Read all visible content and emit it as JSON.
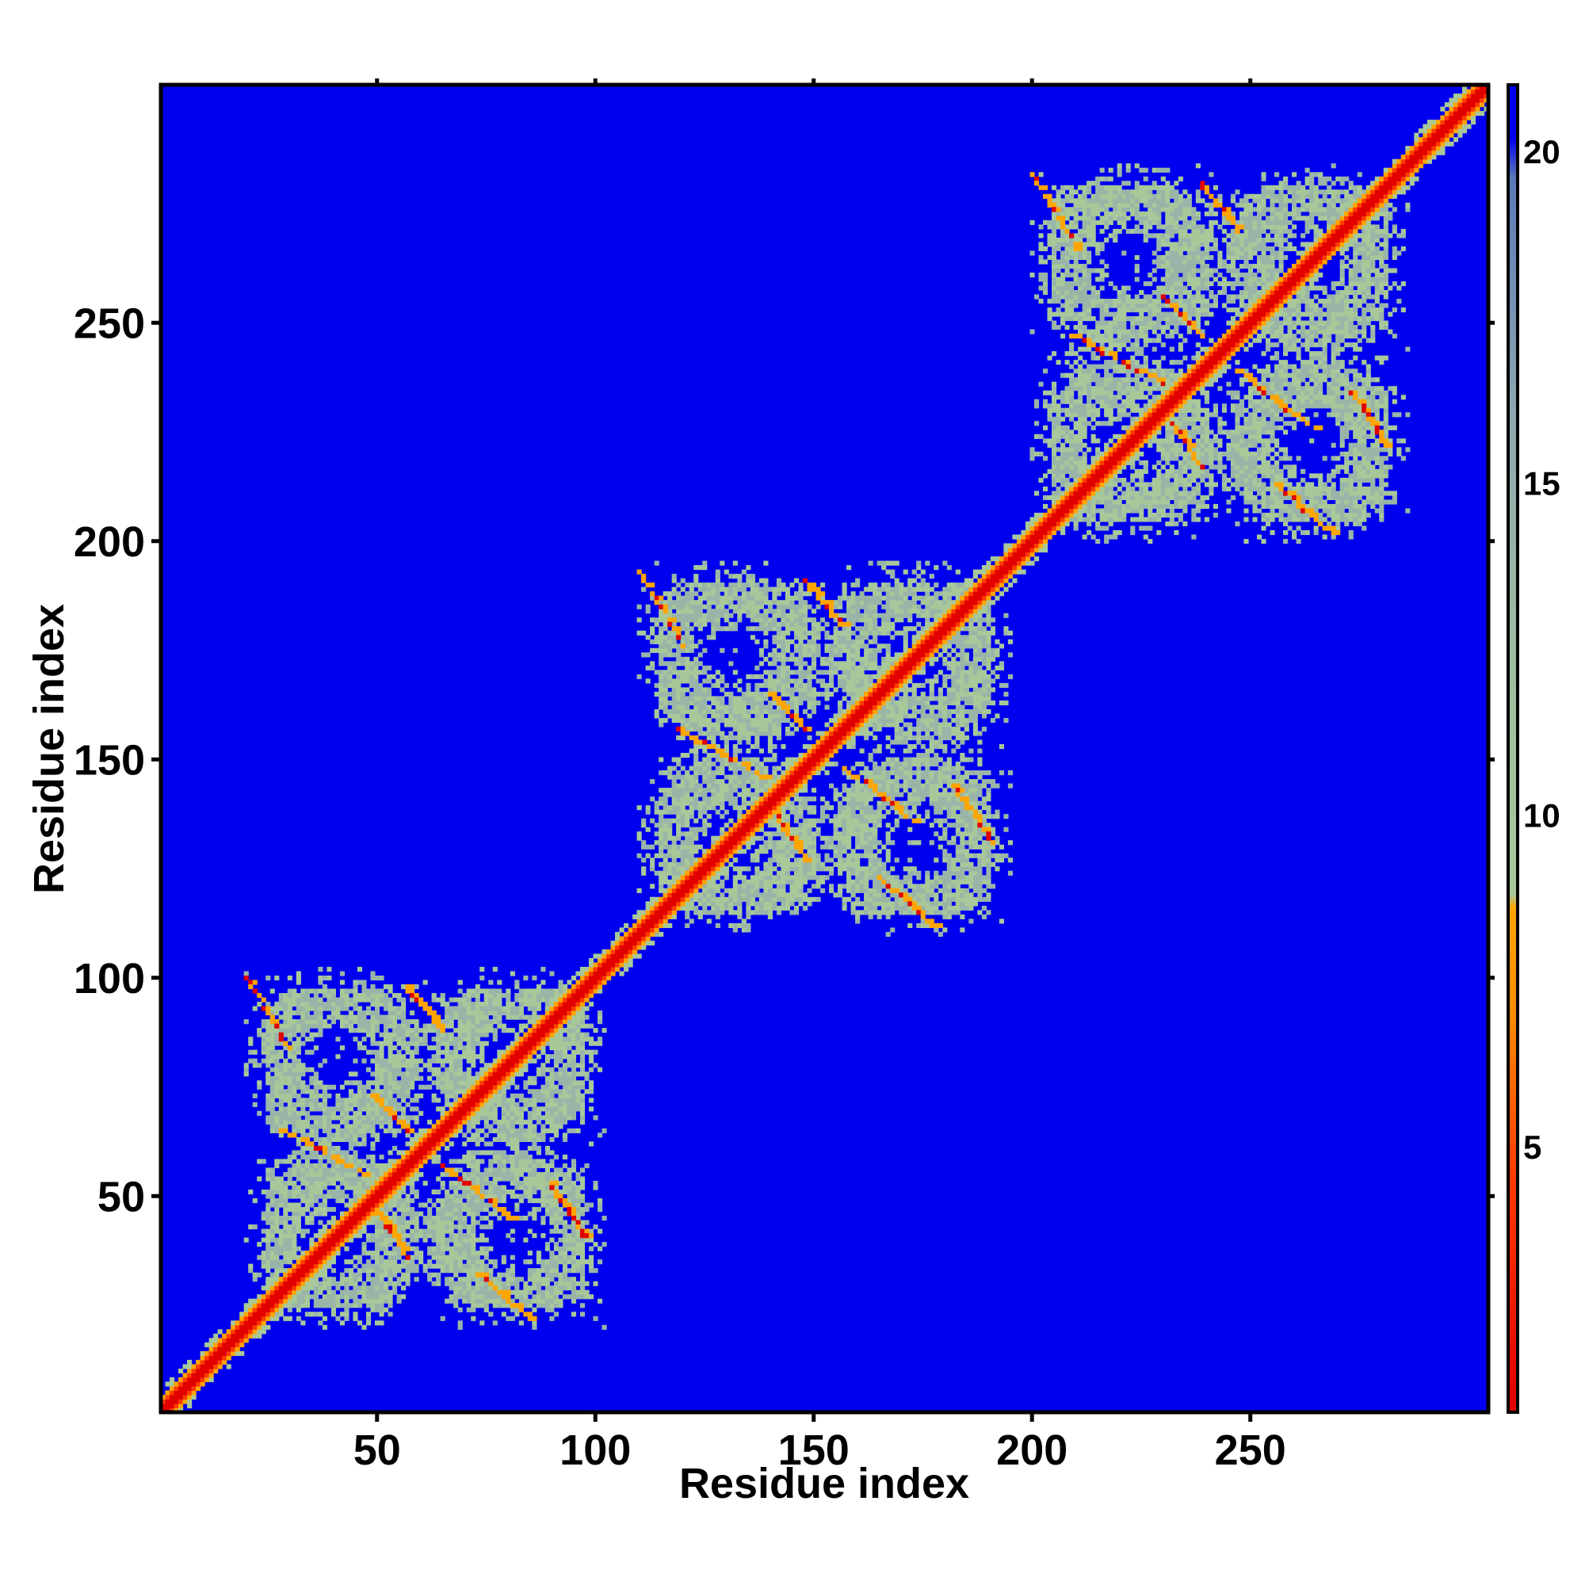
{
  "chart_data": {
    "type": "heatmap",
    "title": "",
    "xlabel": "Residue index",
    "ylabel": "Residue index",
    "xlim": [
      1,
      304
    ],
    "ylim": [
      1,
      304
    ],
    "x_ticks": [
      50,
      100,
      150,
      200,
      250
    ],
    "y_ticks": [
      50,
      100,
      150,
      200,
      250
    ],
    "colorbar": {
      "ticks": [
        5,
        10,
        15,
        20
      ],
      "range": [
        1,
        21
      ],
      "colors": [
        "#e00000",
        "#ff5a00",
        "#ffa500",
        "#a8c89a",
        "#9ab5a8",
        "#7a9ab8",
        "#5a7ab8",
        "#0000ee"
      ]
    },
    "background_color": "#0000ee",
    "domains": [
      {
        "start": 20,
        "end": 102
      },
      {
        "start": 110,
        "end": 195
      },
      {
        "start": 200,
        "end": 286
      }
    ],
    "description_values": {
      "diagonal_value": 2,
      "contact_band_value": 6,
      "halo_value": 11,
      "no_contact_value": 21
    }
  }
}
